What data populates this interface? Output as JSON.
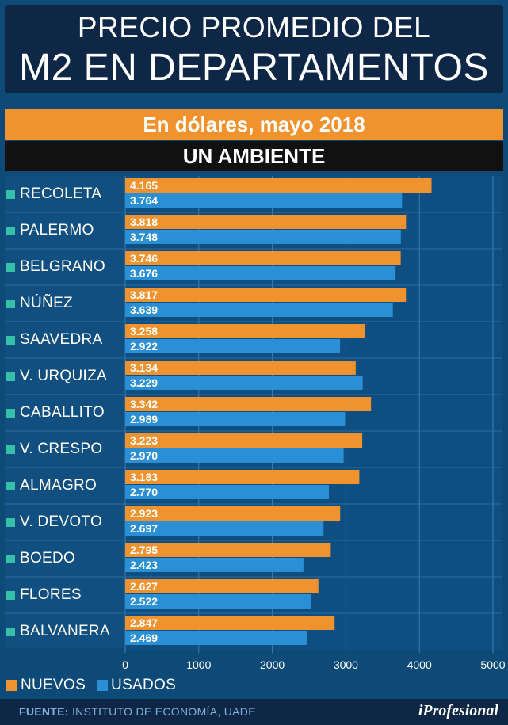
{
  "title": {
    "line1": "PRECIO PROMEDIO DEL",
    "line2": "M2 EN DEPARTAMENTOS"
  },
  "subtitle": "En dólares, mayo 2018",
  "section": "UN AMBIENTE",
  "legend": {
    "nuevos": "NUEVOS",
    "usados": "USADOS"
  },
  "colors": {
    "nuevos": "#f0922e",
    "usados": "#2b8fd6",
    "label_square": "#35c1a8",
    "background": "#0d4a78"
  },
  "footer": {
    "source_label": "FUENTE:",
    "source_text": "INSTITUTO DE ECONOMÍA, UADE",
    "brand": "iProfesional"
  },
  "chart_data": {
    "type": "bar",
    "orientation": "horizontal",
    "categories": [
      "RECOLETA",
      "PALERMO",
      "BELGRANO",
      "NÚÑEZ",
      "SAAVEDRA",
      "V. URQUIZA",
      "CABALLITO",
      "V. CRESPO",
      "ALMAGRO",
      "V. DEVOTO",
      "BOEDO",
      "FLORES",
      "BALVANERA"
    ],
    "series": [
      {
        "name": "NUEVOS",
        "values": [
          4165,
          3818,
          3746,
          3817,
          3258,
          3134,
          3342,
          3223,
          3183,
          2923,
          2795,
          2627,
          2847
        ],
        "labels": [
          "4.165",
          "3.818",
          "3.746",
          "3.817",
          "3.258",
          "3.134",
          "3.342",
          "3.223",
          "3.183",
          "2.923",
          "2.795",
          "2.627",
          "2.847"
        ]
      },
      {
        "name": "USADOS",
        "values": [
          3764,
          3748,
          3676,
          3639,
          2922,
          3229,
          2989,
          2970,
          2770,
          2697,
          2423,
          2522,
          2469
        ],
        "labels": [
          "3.764",
          "3.748",
          "3.676",
          "3.639",
          "2.922",
          "3.229",
          "2.989",
          "2.970",
          "2.770",
          "2.697",
          "2.423",
          "2.522",
          "2.469"
        ]
      }
    ],
    "xlim": [
      0,
      5000
    ],
    "xticks": [
      0,
      1000,
      2000,
      3000,
      4000,
      5000
    ],
    "grid": true,
    "legend_position": "bottom-left"
  }
}
